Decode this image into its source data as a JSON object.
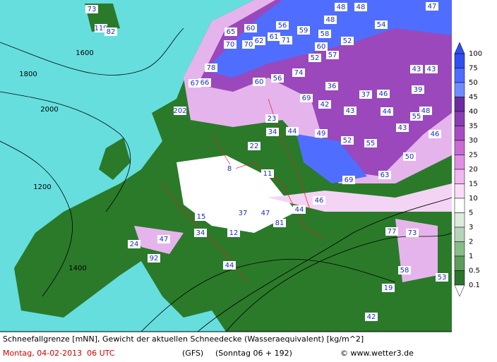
{
  "caption": {
    "line1": "Schneefallgrenze [mNN], Gewicht der aktuellen Schneedecke (Wasseraequivalent) [kg/m^2]",
    "date": "Montag, 04-02-2013  06 UTC",
    "model": "(GFS)",
    "run": "(Sonntag 06 + 192)",
    "credit": "© www.wetter3.de"
  },
  "legend": {
    "levels": [
      "100",
      "75",
      "50",
      "45",
      "40",
      "35",
      "30",
      "25",
      "20",
      "15",
      "10",
      "5",
      "3",
      "2",
      "1",
      "0.5",
      "0.1"
    ],
    "colors": [
      "#2f4ff0",
      "#4e6cff",
      "#6f8cff",
      "#6a2ca0",
      "#8a3cb4",
      "#a84cc4",
      "#c86cd4",
      "#e090e4",
      "#f0b8f0",
      "#f8dcf8",
      "#ffffff",
      "#dcecdc",
      "#b8d4b8",
      "#88bc88",
      "#5c9c5c",
      "#2c742c"
    ]
  },
  "map_labels": [
    "73",
    "119",
    "82",
    "65",
    "60",
    "56",
    "59",
    "48",
    "48",
    "54",
    "47",
    "62",
    "61",
    "71",
    "58",
    "52",
    "70",
    "70",
    "60",
    "57",
    "52",
    "48",
    "78",
    "67",
    "66",
    "74",
    "60",
    "56",
    "43",
    "43",
    "36",
    "37",
    "46",
    "39",
    "69",
    "42",
    "43",
    "44",
    "48",
    "23",
    "34",
    "44",
    "49",
    "52",
    "55",
    "43",
    "46",
    "50",
    "55",
    "63",
    "69",
    "22",
    "8",
    "11",
    "44",
    "46",
    "81",
    "47",
    "37",
    "77",
    "73",
    "15",
    "34",
    "12",
    "24",
    "47",
    "92",
    "44",
    "19",
    "58",
    "53",
    "42",
    "202",
    "1200",
    "1400",
    "1600",
    "1800",
    "2000"
  ]
}
